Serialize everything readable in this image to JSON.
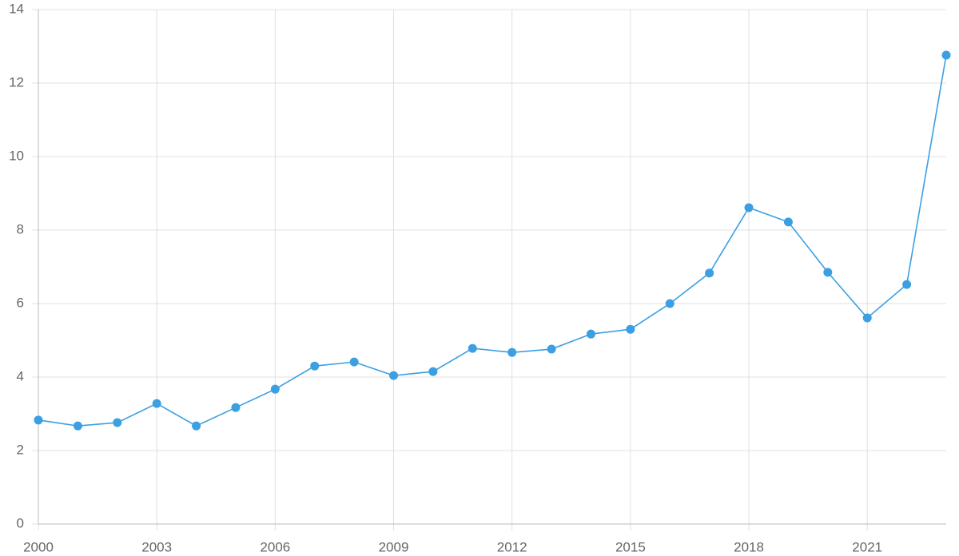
{
  "chart_data": {
    "type": "line",
    "x": [
      2000,
      2001,
      2002,
      2003,
      2004,
      2005,
      2006,
      2007,
      2008,
      2009,
      2010,
      2011,
      2012,
      2013,
      2014,
      2015,
      2016,
      2017,
      2018,
      2019,
      2020,
      2021,
      2022,
      2023
    ],
    "series": [
      {
        "color": "#3b9fe2",
        "values": [
          2.83,
          2.67,
          2.76,
          3.28,
          2.67,
          3.17,
          3.67,
          4.3,
          4.41,
          4.04,
          4.15,
          4.78,
          4.67,
          4.76,
          5.17,
          5.3,
          6.0,
          6.83,
          8.61,
          8.22,
          6.85,
          5.61,
          6.52,
          12.76
        ]
      }
    ],
    "xlim": [
      2000,
      2023
    ],
    "xticks": [
      2000,
      2003,
      2006,
      2009,
      2012,
      2015,
      2018,
      2021
    ],
    "ylim": [
      0,
      14
    ],
    "yticks": [
      0,
      2,
      4,
      6,
      8,
      10,
      12,
      14
    ],
    "grid": true
  }
}
